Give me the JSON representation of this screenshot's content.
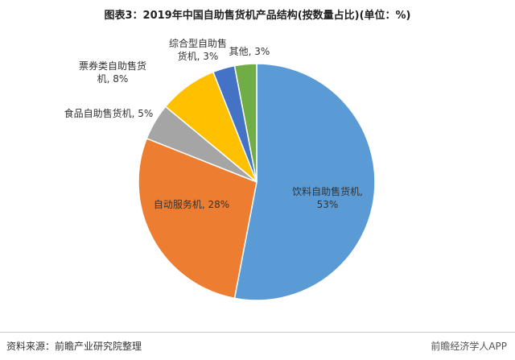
{
  "chart_data": {
    "type": "pie",
    "title": "图表3：2019年中国自助售货机产品结构(按数量占比)(单位：%)",
    "values": [
      53,
      28,
      5,
      8,
      3,
      3
    ],
    "value_labels": [
      "饮料自助售货机, 53%",
      "自动服务机, 28%",
      "食品自助售货机, 5%",
      "票券类自助售货机, 8%",
      "综合型自助售货机, 3%",
      "其他, 3%"
    ],
    "colors": [
      "#5b9bd5",
      "#ed7d31",
      "#a5a5a5",
      "#ffc000",
      "#4472c4",
      "#70ad47"
    ],
    "source": "资料来源：前瞻产业研究院整理",
    "brand": "前瞻经济学人APP"
  }
}
